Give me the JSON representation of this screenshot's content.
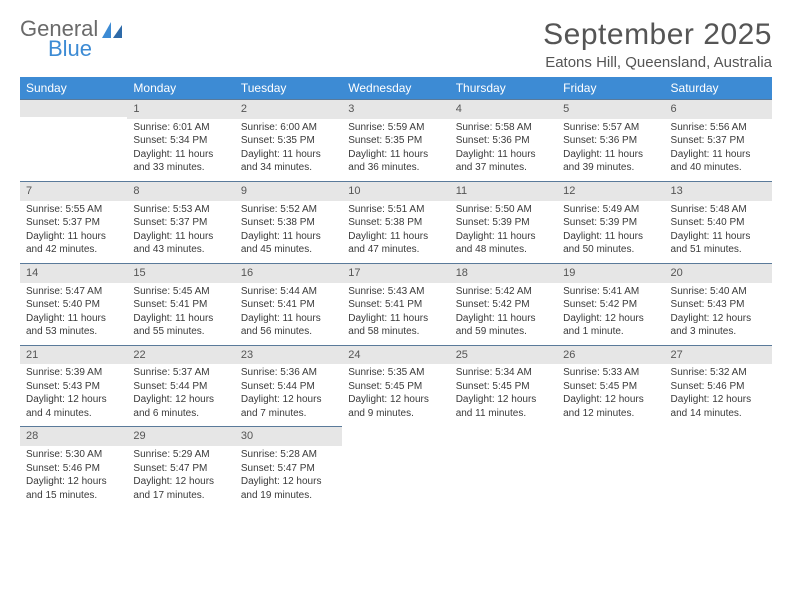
{
  "logo": {
    "line1": "General",
    "line2": "Blue"
  },
  "title": "September 2025",
  "location": "Eatons Hill, Queensland, Australia",
  "colors": {
    "header_bg": "#3d8bd4",
    "header_text": "#ffffff",
    "daynum_bg": "#e6e6e6",
    "daynum_border": "#5a7a9a",
    "body_text": "#3a3a3a",
    "title_text": "#555555"
  },
  "day_labels": [
    "Sunday",
    "Monday",
    "Tuesday",
    "Wednesday",
    "Thursday",
    "Friday",
    "Saturday"
  ],
  "weeks": [
    [
      null,
      {
        "n": "1",
        "sr": "Sunrise: 6:01 AM",
        "ss": "Sunset: 5:34 PM",
        "dl": "Daylight: 11 hours and 33 minutes."
      },
      {
        "n": "2",
        "sr": "Sunrise: 6:00 AM",
        "ss": "Sunset: 5:35 PM",
        "dl": "Daylight: 11 hours and 34 minutes."
      },
      {
        "n": "3",
        "sr": "Sunrise: 5:59 AM",
        "ss": "Sunset: 5:35 PM",
        "dl": "Daylight: 11 hours and 36 minutes."
      },
      {
        "n": "4",
        "sr": "Sunrise: 5:58 AM",
        "ss": "Sunset: 5:36 PM",
        "dl": "Daylight: 11 hours and 37 minutes."
      },
      {
        "n": "5",
        "sr": "Sunrise: 5:57 AM",
        "ss": "Sunset: 5:36 PM",
        "dl": "Daylight: 11 hours and 39 minutes."
      },
      {
        "n": "6",
        "sr": "Sunrise: 5:56 AM",
        "ss": "Sunset: 5:37 PM",
        "dl": "Daylight: 11 hours and 40 minutes."
      }
    ],
    [
      {
        "n": "7",
        "sr": "Sunrise: 5:55 AM",
        "ss": "Sunset: 5:37 PM",
        "dl": "Daylight: 11 hours and 42 minutes."
      },
      {
        "n": "8",
        "sr": "Sunrise: 5:53 AM",
        "ss": "Sunset: 5:37 PM",
        "dl": "Daylight: 11 hours and 43 minutes."
      },
      {
        "n": "9",
        "sr": "Sunrise: 5:52 AM",
        "ss": "Sunset: 5:38 PM",
        "dl": "Daylight: 11 hours and 45 minutes."
      },
      {
        "n": "10",
        "sr": "Sunrise: 5:51 AM",
        "ss": "Sunset: 5:38 PM",
        "dl": "Daylight: 11 hours and 47 minutes."
      },
      {
        "n": "11",
        "sr": "Sunrise: 5:50 AM",
        "ss": "Sunset: 5:39 PM",
        "dl": "Daylight: 11 hours and 48 minutes."
      },
      {
        "n": "12",
        "sr": "Sunrise: 5:49 AM",
        "ss": "Sunset: 5:39 PM",
        "dl": "Daylight: 11 hours and 50 minutes."
      },
      {
        "n": "13",
        "sr": "Sunrise: 5:48 AM",
        "ss": "Sunset: 5:40 PM",
        "dl": "Daylight: 11 hours and 51 minutes."
      }
    ],
    [
      {
        "n": "14",
        "sr": "Sunrise: 5:47 AM",
        "ss": "Sunset: 5:40 PM",
        "dl": "Daylight: 11 hours and 53 minutes."
      },
      {
        "n": "15",
        "sr": "Sunrise: 5:45 AM",
        "ss": "Sunset: 5:41 PM",
        "dl": "Daylight: 11 hours and 55 minutes."
      },
      {
        "n": "16",
        "sr": "Sunrise: 5:44 AM",
        "ss": "Sunset: 5:41 PM",
        "dl": "Daylight: 11 hours and 56 minutes."
      },
      {
        "n": "17",
        "sr": "Sunrise: 5:43 AM",
        "ss": "Sunset: 5:41 PM",
        "dl": "Daylight: 11 hours and 58 minutes."
      },
      {
        "n": "18",
        "sr": "Sunrise: 5:42 AM",
        "ss": "Sunset: 5:42 PM",
        "dl": "Daylight: 11 hours and 59 minutes."
      },
      {
        "n": "19",
        "sr": "Sunrise: 5:41 AM",
        "ss": "Sunset: 5:42 PM",
        "dl": "Daylight: 12 hours and 1 minute."
      },
      {
        "n": "20",
        "sr": "Sunrise: 5:40 AM",
        "ss": "Sunset: 5:43 PM",
        "dl": "Daylight: 12 hours and 3 minutes."
      }
    ],
    [
      {
        "n": "21",
        "sr": "Sunrise: 5:39 AM",
        "ss": "Sunset: 5:43 PM",
        "dl": "Daylight: 12 hours and 4 minutes."
      },
      {
        "n": "22",
        "sr": "Sunrise: 5:37 AM",
        "ss": "Sunset: 5:44 PM",
        "dl": "Daylight: 12 hours and 6 minutes."
      },
      {
        "n": "23",
        "sr": "Sunrise: 5:36 AM",
        "ss": "Sunset: 5:44 PM",
        "dl": "Daylight: 12 hours and 7 minutes."
      },
      {
        "n": "24",
        "sr": "Sunrise: 5:35 AM",
        "ss": "Sunset: 5:45 PM",
        "dl": "Daylight: 12 hours and 9 minutes."
      },
      {
        "n": "25",
        "sr": "Sunrise: 5:34 AM",
        "ss": "Sunset: 5:45 PM",
        "dl": "Daylight: 12 hours and 11 minutes."
      },
      {
        "n": "26",
        "sr": "Sunrise: 5:33 AM",
        "ss": "Sunset: 5:45 PM",
        "dl": "Daylight: 12 hours and 12 minutes."
      },
      {
        "n": "27",
        "sr": "Sunrise: 5:32 AM",
        "ss": "Sunset: 5:46 PM",
        "dl": "Daylight: 12 hours and 14 minutes."
      }
    ],
    [
      {
        "n": "28",
        "sr": "Sunrise: 5:30 AM",
        "ss": "Sunset: 5:46 PM",
        "dl": "Daylight: 12 hours and 15 minutes."
      },
      {
        "n": "29",
        "sr": "Sunrise: 5:29 AM",
        "ss": "Sunset: 5:47 PM",
        "dl": "Daylight: 12 hours and 17 minutes."
      },
      {
        "n": "30",
        "sr": "Sunrise: 5:28 AM",
        "ss": "Sunset: 5:47 PM",
        "dl": "Daylight: 12 hours and 19 minutes."
      },
      null,
      null,
      null,
      null
    ]
  ]
}
